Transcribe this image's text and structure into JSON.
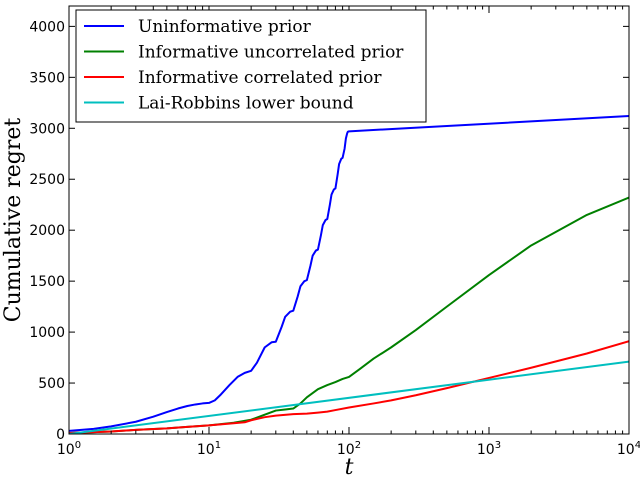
{
  "chart_data": {
    "type": "line",
    "xlabel": "t",
    "ylabel": "Cumulative regret",
    "xscale": "log",
    "xlim": [
      1,
      10000
    ],
    "ylim": [
      0,
      4200
    ],
    "x_ticks": [
      {
        "value": 1,
        "base": "10",
        "exp": "0"
      },
      {
        "value": 10,
        "base": "10",
        "exp": "1"
      },
      {
        "value": 100,
        "base": "10",
        "exp": "2"
      },
      {
        "value": 1000,
        "base": "10",
        "exp": "3"
      },
      {
        "value": 10000,
        "base": "10",
        "exp": "4"
      }
    ],
    "y_ticks": [
      0,
      500,
      1000,
      1500,
      2000,
      2500,
      3000,
      3500,
      4000
    ],
    "legend_position": "top-left",
    "grid": false,
    "series": [
      {
        "name": "Uninformative prior",
        "color": "#0000ff",
        "x": [
          1,
          1.5,
          2,
          3,
          4,
          5,
          6,
          7,
          8,
          9,
          10,
          11,
          12,
          14,
          16,
          18,
          20,
          22,
          25,
          28,
          30,
          33,
          35,
          38,
          40,
          43,
          45,
          48,
          50,
          53,
          55,
          58,
          60,
          63,
          65,
          68,
          70,
          73,
          75,
          78,
          80,
          83,
          85,
          88,
          90,
          93,
          95,
          97,
          98,
          100,
          10000
        ],
        "y": [
          30,
          50,
          75,
          120,
          170,
          215,
          250,
          275,
          290,
          300,
          305,
          330,
          380,
          480,
          560,
          600,
          620,
          700,
          850,
          900,
          905,
          1050,
          1150,
          1200,
          1210,
          1350,
          1450,
          1500,
          1510,
          1650,
          1750,
          1800,
          1810,
          1950,
          2050,
          2100,
          2110,
          2250,
          2350,
          2400,
          2410,
          2550,
          2650,
          2700,
          2710,
          2800,
          2900,
          2950,
          2965,
          2970,
          3120
        ]
      },
      {
        "name": "Informative uncorrelated prior",
        "color": "#008000",
        "x": [
          1,
          2,
          3,
          5,
          7,
          10,
          15,
          20,
          25,
          30,
          35,
          40,
          45,
          50,
          60,
          70,
          80,
          90,
          100,
          120,
          150,
          200,
          300,
          500,
          1000,
          2000,
          5000,
          10000
        ],
        "y": [
          10,
          25,
          40,
          55,
          70,
          85,
          110,
          140,
          190,
          230,
          240,
          250,
          300,
          360,
          440,
          480,
          510,
          540,
          560,
          640,
          740,
          850,
          1020,
          1250,
          1560,
          1850,
          2150,
          2320
        ]
      },
      {
        "name": "Informative correlated prior",
        "color": "#ff0000",
        "x": [
          1,
          2,
          3,
          5,
          7,
          10,
          15,
          18,
          20,
          25,
          30,
          40,
          50,
          60,
          70,
          80,
          100,
          150,
          200,
          300,
          500,
          1000,
          2000,
          5000,
          10000
        ],
        "y": [
          10,
          25,
          40,
          55,
          70,
          85,
          105,
          115,
          135,
          165,
          180,
          195,
          200,
          210,
          220,
          235,
          260,
          300,
          330,
          380,
          450,
          550,
          650,
          790,
          910
        ]
      },
      {
        "name": "Lai-Robbins lower bound",
        "color": "#00bfbf",
        "x": [
          1,
          10000
        ],
        "y": [
          0,
          710
        ]
      }
    ]
  }
}
